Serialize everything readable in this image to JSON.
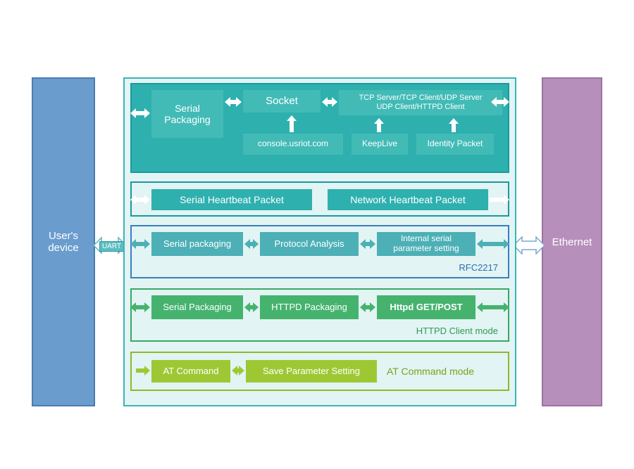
{
  "colors": {
    "left_fill": "#6a9cce",
    "left_border": "#4a7db0",
    "right_fill": "#b690bb",
    "right_border": "#9c72a3",
    "center_bg": "#e2f4f3",
    "center_border": "#3db3b8",
    "teal_border": "#1a9aa0",
    "teal_fill": "#2eb0af",
    "teal_light": "#42bbb7",
    "blue_border": "#3b7ebf",
    "blue_fill": "#4cb0b6",
    "blue_text": "#2d6fb0",
    "green_border": "#3aa862",
    "green_fill": "#45b36e",
    "green_text": "#2f9a55",
    "lime_border": "#90b82a",
    "lime_fill": "#9ec833",
    "lime_text": "#7aa21a",
    "white": "#ffffff",
    "uart_bg": "#5dbcc0",
    "uart_border": "#2a9aa0"
  },
  "left": {
    "label": "User's\ndevice"
  },
  "right": {
    "label": "Ethernet"
  },
  "uart_label": "UART",
  "row1": {
    "serial": "Serial\nPackaging",
    "socket": "Socket",
    "modes": "TCP Server/TCP Client/UDP Server\nUDP Client/HTTPD Client",
    "console": "console.usriot.com",
    "keep": "KeepLive",
    "identity": "Identity Packet"
  },
  "row2": {
    "shp": "Serial Heartbeat Packet",
    "nhp": "Network Heartbeat Packet"
  },
  "row3": {
    "sp": "Serial packaging",
    "pa": "Protocol Analysis",
    "isp": "Internal serial\nparameter setting",
    "label": "RFC2217"
  },
  "row4": {
    "sp": "Serial Packaging",
    "hp": "HTTPD Packaging",
    "hgp": "Httpd GET/POST",
    "label": "HTTPD Client mode"
  },
  "row5": {
    "at": "AT Command",
    "save": "Save Parameter Setting",
    "label": "AT Command mode"
  }
}
